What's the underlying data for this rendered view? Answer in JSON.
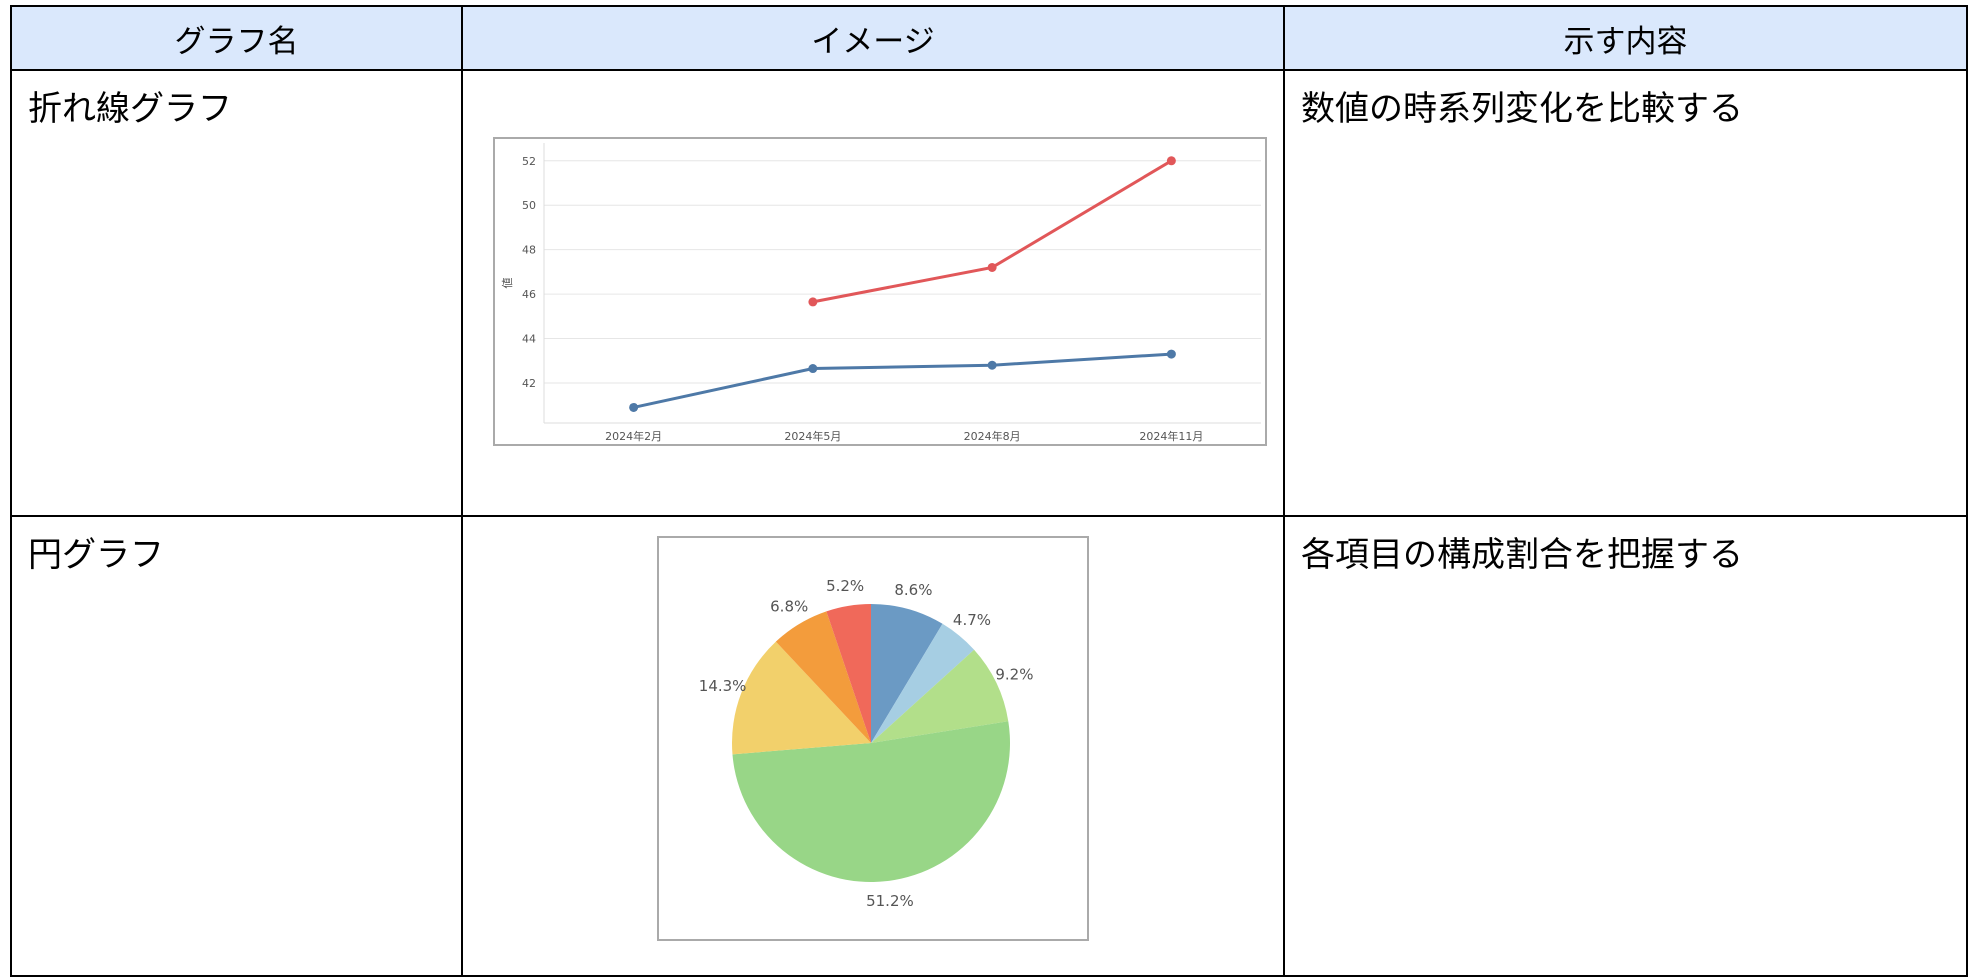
{
  "table": {
    "header": [
      "グラフ名",
      "イメージ",
      "示す内容"
    ],
    "rows": [
      {
        "name": "折れ線グラフ",
        "description": "数値の時系列変化を比較する",
        "chart": {
          "type": "line",
          "ylabel": "値",
          "categories": [
            "2024年2月",
            "2024年5月",
            "2024年8月",
            "2024年11月"
          ],
          "series": [
            {
              "color": "#4e79a7",
              "values": [
                40.9,
                42.65,
                42.8,
                43.3
              ]
            },
            {
              "color": "#e15759",
              "values": [
                null,
                45.65,
                47.2,
                52.0
              ]
            }
          ],
          "ylim": [
            40.2,
            52.8
          ],
          "yticks": [
            42,
            44,
            46,
            48,
            50,
            52
          ],
          "grid": true
        }
      },
      {
        "name": "円グラフ",
        "description": "各項目の構成割合を把握する",
        "chart": {
          "type": "pie",
          "values": [
            8.6,
            4.7,
            9.2,
            51.2,
            14.3,
            6.8,
            5.2
          ],
          "value_labels": [
            "8.6%",
            "4.7%",
            "9.2%",
            "51.2%",
            "14.3%",
            "6.8%",
            "5.2%"
          ],
          "colors": [
            "#6b9ac4",
            "#a6cee3",
            "#b2df8a",
            "#98d687",
            "#f2d06b",
            "#f39c3c",
            "#f0695a"
          ]
        }
      }
    ]
  }
}
